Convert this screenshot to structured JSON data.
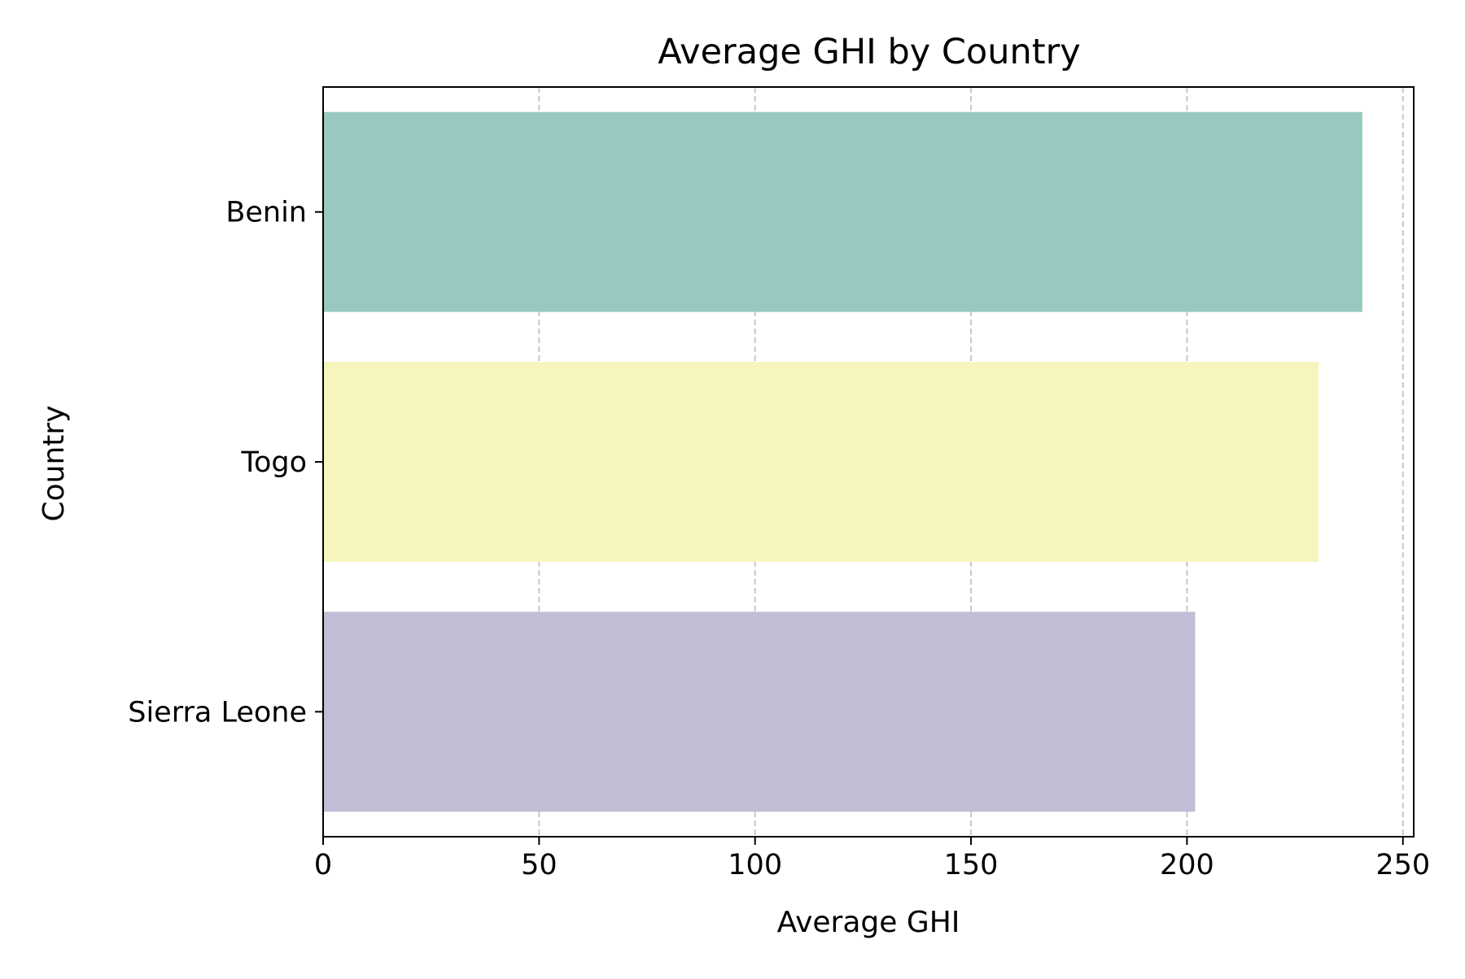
{
  "chart_data": {
    "type": "bar",
    "orientation": "horizontal",
    "title": "Average GHI by Country",
    "xlabel": "Average GHI",
    "ylabel": "Country",
    "categories": [
      "Benin",
      "Togo",
      "Sierra Leone"
    ],
    "values": [
      240.6,
      230.5,
      201.9
    ],
    "colors": [
      "#97c9c0",
      "#f6f5bd",
      "#c1bdd5"
    ],
    "xlim": [
      0,
      252.5
    ],
    "xticks": [
      0,
      50,
      100,
      150,
      200,
      250
    ],
    "xtick_labels": [
      "0",
      "50",
      "100",
      "150",
      "200",
      "250"
    ],
    "grid": {
      "axis": "x",
      "style": "dashed",
      "color": "#c8c8c8"
    },
    "legend": "none"
  }
}
